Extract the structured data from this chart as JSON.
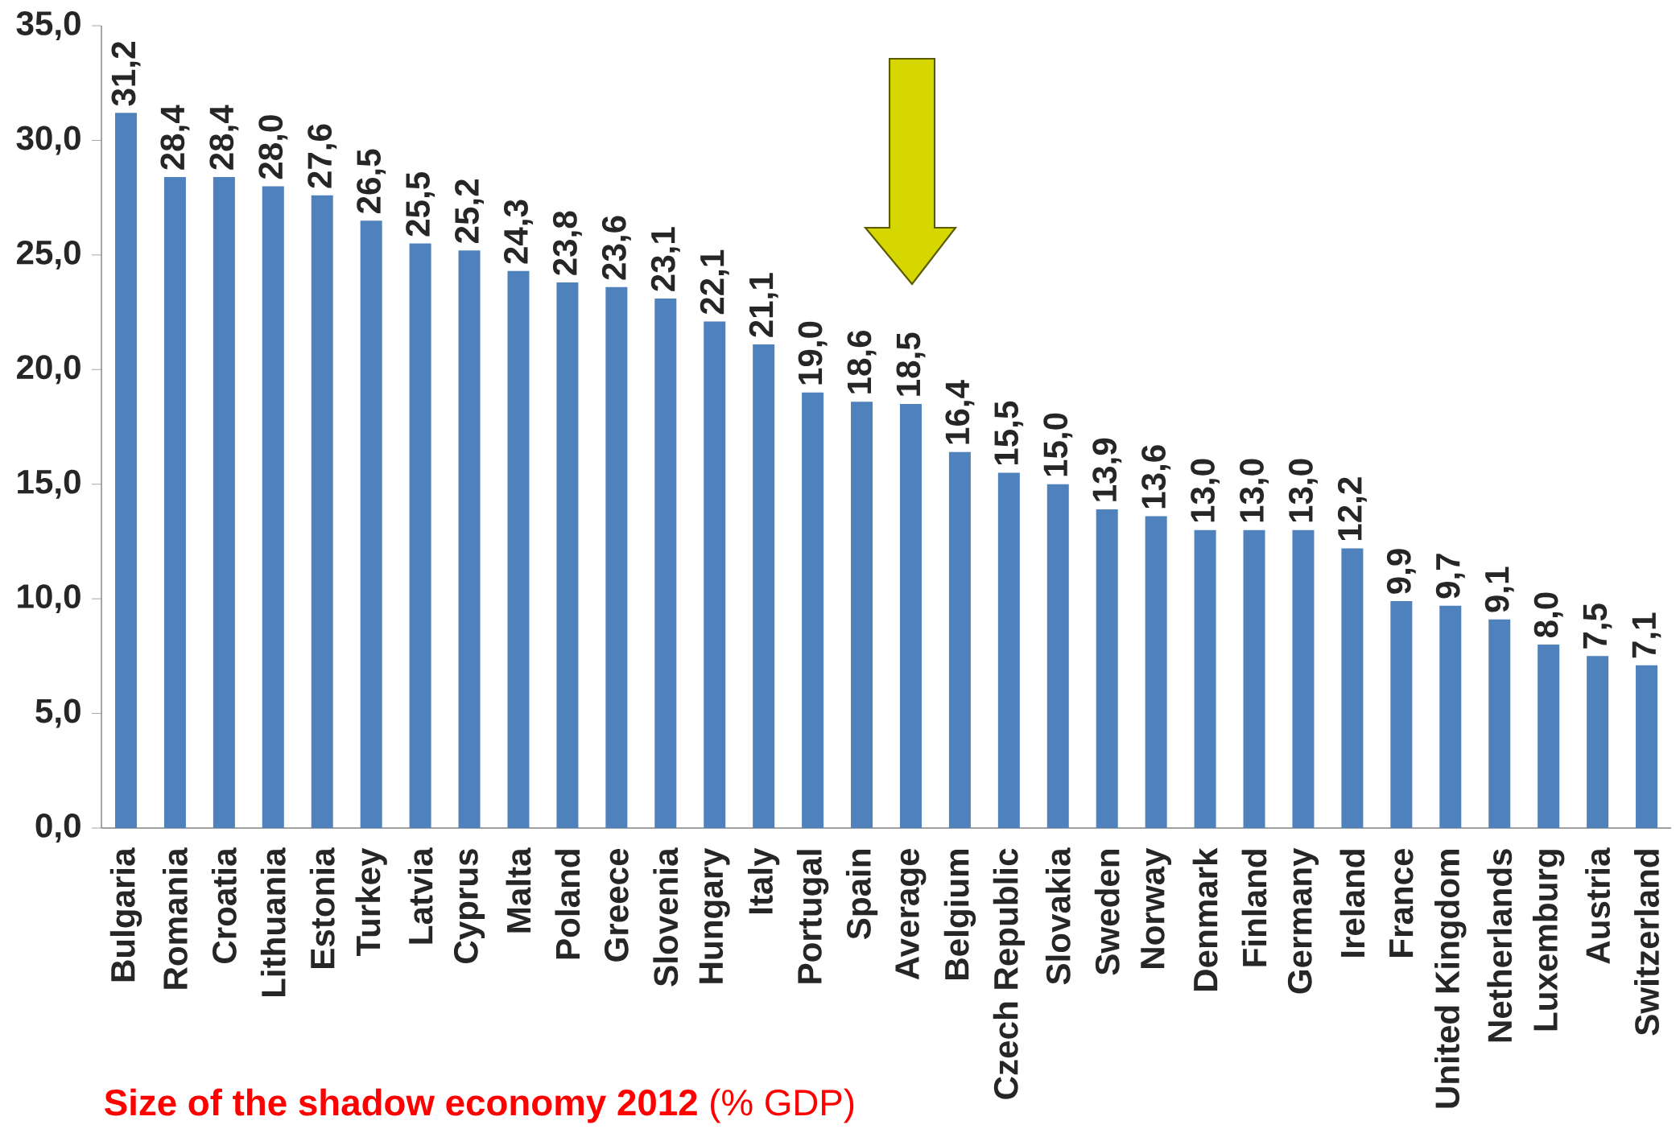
{
  "chart_data": {
    "type": "bar",
    "title": "**Size of the shadow economy 2012** (% GDP)",
    "categories": [
      "Bulgaria",
      "Romania",
      "Croatia",
      "Lithuania",
      "Estonia",
      "Turkey",
      "Latvia",
      "Cyprus",
      "Malta",
      "Poland",
      "Greece",
      "Slovenia",
      "Hungary",
      "Italy",
      "Portugal",
      "Spain",
      "Average",
      "Belgium",
      "Czech Republic",
      "Slovakia",
      "Sweden",
      "Norway",
      "Denmark",
      "Finland",
      "Germany",
      "Ireland",
      "France",
      "United Kingdom",
      "Netherlands",
      "Luxemburg",
      "Austria",
      "Switzerland"
    ],
    "values": [
      31.2,
      28.4,
      28.4,
      28.0,
      27.6,
      26.5,
      25.5,
      25.2,
      24.3,
      23.8,
      23.6,
      23.1,
      22.1,
      21.1,
      19.0,
      18.6,
      18.5,
      16.4,
      15.5,
      15.0,
      13.9,
      13.6,
      13.0,
      13.0,
      13.0,
      12.2,
      9.9,
      9.7,
      9.1,
      8.0,
      7.5,
      7.1
    ],
    "value_labels": [
      "31,2",
      "28,4",
      "28,4",
      "28,0",
      "27,6",
      "26,5",
      "25,5",
      "25,2",
      "24,3",
      "23,8",
      "23,6",
      "23,1",
      "22,1",
      "21,1",
      "19,0",
      "18,6",
      "18,5",
      "16,4",
      "15,5",
      "15,0",
      "13,9",
      "13,6",
      "13,0",
      "13,0",
      "13,0",
      "12,2",
      "9,9",
      "9,7",
      "9,1",
      "8,0",
      "7,5",
      "7,1"
    ],
    "color": "#4f81bd",
    "ylim": [
      0,
      35
    ],
    "yticks": [
      {
        "value": 0,
        "label": "0,0"
      },
      {
        "value": 5,
        "label": "5,0"
      },
      {
        "value": 10,
        "label": "10,0"
      },
      {
        "value": 15,
        "label": "15,0"
      },
      {
        "value": 20,
        "label": "20,0"
      },
      {
        "value": 25,
        "label": "25,0"
      },
      {
        "value": 30,
        "label": "30,0"
      },
      {
        "value": 35,
        "label": "35,0"
      }
    ]
  }
}
